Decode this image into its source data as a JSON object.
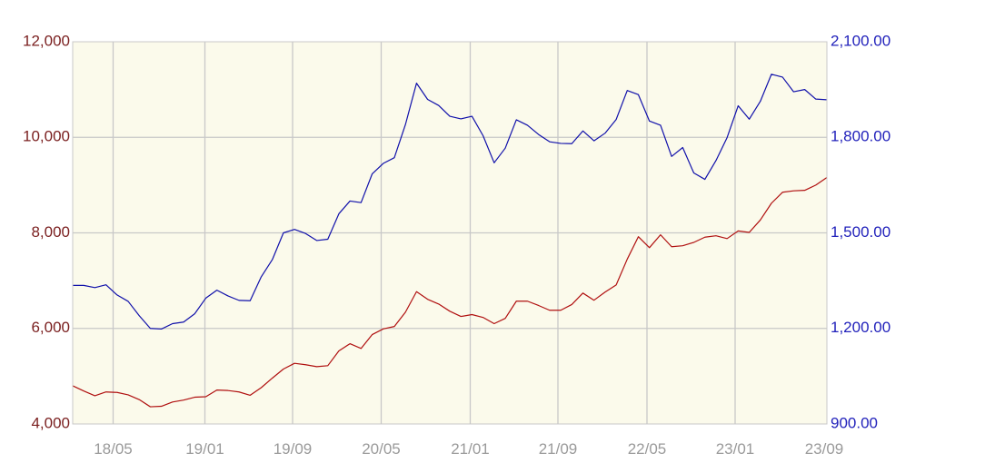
{
  "chart_data": {
    "type": "line",
    "grid": true,
    "background_color": "#fbfaeb",
    "grid_color": "#c8c8c8",
    "x_tick_labels": [
      "18/05",
      "19/01",
      "19/09",
      "20/05",
      "21/01",
      "21/09",
      "22/05",
      "23/01",
      "23/09"
    ],
    "x_range": [
      0,
      66
    ],
    "left_axis": {
      "range": [
        4000,
        12000
      ],
      "ticks": [
        4000,
        6000,
        8000,
        10000,
        12000
      ],
      "tick_labels": [
        "4,000",
        "6,000",
        "8,000",
        "10,000",
        "12,000"
      ],
      "color": "#7a1f1f"
    },
    "right_axis": {
      "range": [
        900,
        2100
      ],
      "ticks": [
        900,
        1200,
        1500,
        1800,
        2100
      ],
      "tick_labels": [
        "900.00",
        "1,200.00",
        "1,500.00",
        "1,800.00",
        "2,100.00"
      ],
      "color": "#2222bb"
    },
    "series": [
      {
        "axis": "left",
        "color": "#b01010",
        "values": [
          4800,
          4690,
          4590,
          4670,
          4660,
          4610,
          4510,
          4360,
          4370,
          4460,
          4500,
          4560,
          4570,
          4710,
          4700,
          4670,
          4600,
          4760,
          4960,
          5150,
          5270,
          5240,
          5200,
          5220,
          5530,
          5680,
          5580,
          5870,
          5990,
          6040,
          6340,
          6770,
          6610,
          6510,
          6360,
          6250,
          6290,
          6230,
          6100,
          6210,
          6570,
          6570,
          6480,
          6380,
          6380,
          6500,
          6740,
          6590,
          6760,
          6910,
          7450,
          7920,
          7690,
          7960,
          7710,
          7730,
          7800,
          7910,
          7940,
          7880,
          8040,
          8010,
          8270,
          8620,
          8850,
          8880,
          8890,
          9000,
          9160
        ]
      },
      {
        "axis": "right",
        "color": "#1010aa",
        "values": [
          1335,
          1335,
          1328,
          1337,
          1305,
          1285,
          1240,
          1200,
          1198,
          1215,
          1220,
          1246,
          1295,
          1320,
          1302,
          1288,
          1287,
          1362,
          1416,
          1500,
          1511,
          1498,
          1476,
          1480,
          1560,
          1600,
          1595,
          1685,
          1718,
          1736,
          1840,
          1970,
          1919,
          1900,
          1866,
          1858,
          1866,
          1805,
          1720,
          1766,
          1855,
          1838,
          1809,
          1786,
          1781,
          1780,
          1820,
          1789,
          1813,
          1856,
          1947,
          1934,
          1851,
          1838,
          1740,
          1768,
          1688,
          1668,
          1727,
          1799,
          1899,
          1857,
          1913,
          1998,
          1989,
          1943,
          1950,
          1920,
          1918
        ]
      }
    ]
  }
}
